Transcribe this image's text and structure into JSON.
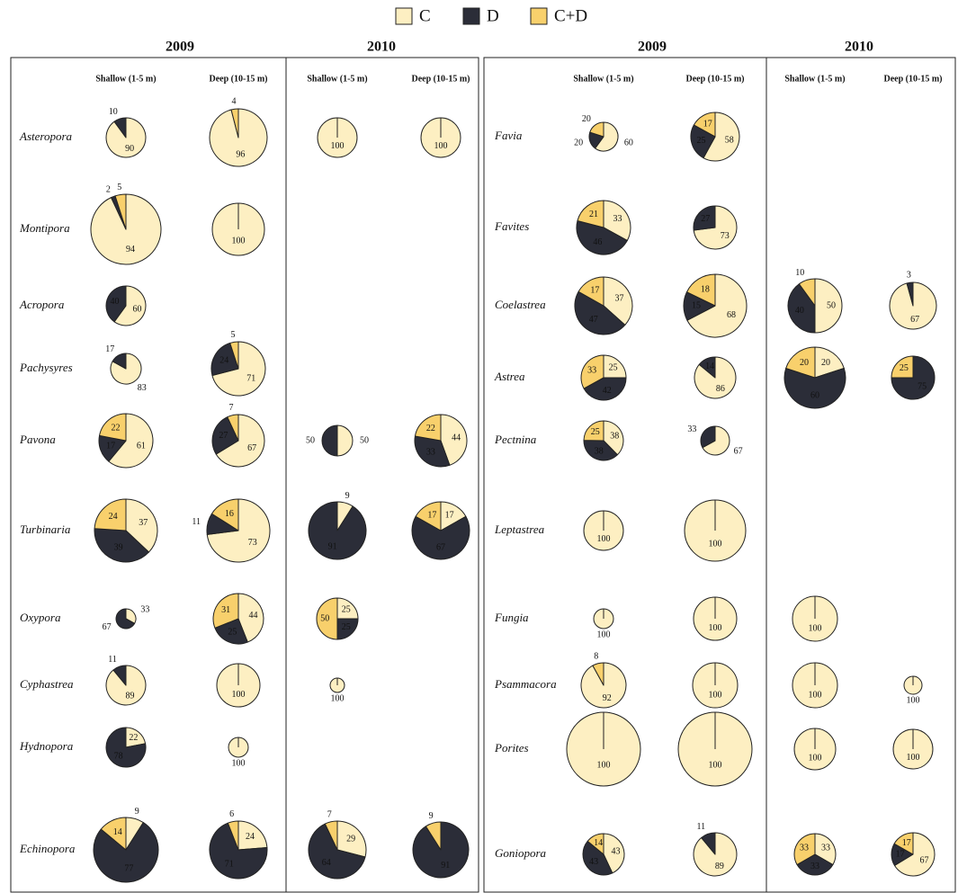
{
  "chart_data": {
    "type": "pie",
    "series": [
      {
        "name": "C",
        "color": "#fdefc2"
      },
      {
        "name": "D",
        "color": "#2b2d38"
      },
      {
        "name": "C+D",
        "color": "#f8d06c"
      }
    ],
    "panels": [
      {
        "years": [
          {
            "label": "2009",
            "columns": [
              "Shallow (1-5 m)",
              "Deep (10-15 m)"
            ]
          },
          {
            "label": "2010",
            "columns": [
              "Shallow (1-5 m)",
              "Deep (10-15 m)"
            ]
          }
        ],
        "rows": [
          {
            "genus": "Asteropora",
            "pies": [
              {
                "values": [
                  90,
                  10,
                  null
                ],
                "size": 22
              },
              {
                "values": [
                  96,
                  null,
                  4
                ],
                "size": 32
              },
              {
                "values": [
                  100,
                  null,
                  null
                ],
                "size": 22
              },
              {
                "values": [
                  100,
                  null,
                  null
                ],
                "size": 22
              }
            ]
          },
          {
            "genus": "Montipora",
            "pies": [
              {
                "values": [
                  94,
                  2,
                  5
                ],
                "size": 39
              },
              {
                "values": [
                  100,
                  null,
                  null
                ],
                "size": 29
              },
              null,
              null
            ]
          },
          {
            "genus": "Acropora",
            "pies": [
              {
                "values": [
                  60,
                  40,
                  null
                ],
                "size": 22
              },
              null,
              null,
              null
            ]
          },
          {
            "genus": "Pachysyres",
            "pies": [
              {
                "values": [
                  83,
                  17,
                  null
                ],
                "size": 17
              },
              {
                "values": [
                  71,
                  24,
                  5
                ],
                "size": 30
              },
              null,
              null
            ]
          },
          {
            "genus": "Pavona",
            "pies": [
              {
                "values": [
                  61,
                  17,
                  22
                ],
                "size": 30
              },
              {
                "values": [
                  67,
                  27,
                  7
                ],
                "size": 29
              },
              {
                "values": [
                  50,
                  50,
                  null
                ],
                "size": 17
              },
              {
                "values": [
                  44,
                  33,
                  22
                ],
                "size": 29
              }
            ]
          },
          {
            "genus": "Turbinaria",
            "pies": [
              {
                "values": [
                  37,
                  39,
                  24
                ],
                "size": 35
              },
              {
                "values": [
                  73,
                  11,
                  16
                ],
                "size": 35
              },
              {
                "values": [
                  9,
                  91,
                  null
                ],
                "size": 32
              },
              {
                "values": [
                  17,
                  67,
                  17
                ],
                "size": 32
              }
            ]
          },
          {
            "genus": "Oxypora",
            "pies": [
              {
                "values": [
                  33,
                  67,
                  null
                ],
                "size": 11
              },
              {
                "values": [
                  44,
                  25,
                  31
                ],
                "size": 28
              },
              {
                "values": [
                  25,
                  25,
                  50
                ],
                "size": 23
              },
              null
            ]
          },
          {
            "genus": "Cyphastrea",
            "pies": [
              {
                "values": [
                  89,
                  11,
                  null
                ],
                "size": 22
              },
              {
                "values": [
                  100,
                  null,
                  null
                ],
                "size": 24
              },
              {
                "values": [
                  100,
                  null,
                  null
                ],
                "size": 8
              },
              null
            ]
          },
          {
            "genus": "Hydnopora",
            "pies": [
              {
                "values": [
                  22,
                  78,
                  null
                ],
                "size": 22
              },
              {
                "values": [
                  100,
                  null,
                  null
                ],
                "size": 11
              },
              null,
              null
            ]
          },
          {
            "genus": "Echinopora",
            "pies": [
              {
                "values": [
                  9,
                  77,
                  14
                ],
                "size": 36
              },
              {
                "values": [
                  24,
                  71,
                  6
                ],
                "size": 32
              },
              {
                "values": [
                  29,
                  64,
                  7
                ],
                "size": 32
              },
              {
                "values": [
                  null,
                  91,
                  9
                ],
                "size": 31
              }
            ]
          }
        ]
      },
      {
        "years": [
          {
            "label": "2009",
            "columns": [
              "Shallow (1-5 m)",
              "Deep (10-15 m)"
            ]
          },
          {
            "label": "2010",
            "columns": [
              "Shallow (1-5 m)",
              "Deep (10-15 m)"
            ]
          }
        ],
        "rows": [
          {
            "genus": "Favia",
            "pies": [
              {
                "values": [
                  60,
                  20,
                  20
                ],
                "size": 16
              },
              {
                "values": [
                  58,
                  25,
                  17
                ],
                "size": 27
              },
              null,
              null
            ]
          },
          {
            "genus": "Favites",
            "pies": [
              {
                "values": [
                  33,
                  46,
                  21
                ],
                "size": 30
              },
              {
                "values": [
                  73,
                  27,
                  null
                ],
                "size": 24
              },
              null,
              null
            ]
          },
          {
            "genus": "Coelastrea",
            "pies": [
              {
                "values": [
                  37,
                  47,
                  17
                ],
                "size": 32
              },
              {
                "values": [
                  68,
                  15,
                  18
                ],
                "size": 35
              },
              {
                "values": [
                  50,
                  40,
                  10
                ],
                "size": 30
              },
              {
                "values": [
                  67,
                  3,
                  null
                ],
                "size": 26
              }
            ]
          },
          {
            "genus": "Astrea",
            "pies": [
              {
                "values": [
                  25,
                  42,
                  33
                ],
                "size": 25
              },
              {
                "values": [
                  86,
                  14,
                  null
                ],
                "size": 23
              },
              {
                "values": [
                  20,
                  60,
                  20
                ],
                "size": 34
              },
              {
                "values": [
                  null,
                  75,
                  25
                ],
                "size": 24
              }
            ]
          },
          {
            "genus": "Pectnina",
            "pies": [
              {
                "values": [
                  38,
                  38,
                  25
                ],
                "size": 22
              },
              {
                "values": [
                  67,
                  33,
                  null
                ],
                "size": 16
              },
              null,
              null
            ]
          },
          {
            "genus": "Leptastrea",
            "pies": [
              {
                "values": [
                  100,
                  null,
                  null
                ],
                "size": 22
              },
              {
                "values": [
                  100,
                  null,
                  null
                ],
                "size": 34
              },
              null,
              null
            ]
          },
          {
            "genus": "Fungia",
            "pies": [
              {
                "values": [
                  100,
                  null,
                  null
                ],
                "size": 11
              },
              {
                "values": [
                  100,
                  null,
                  null
                ],
                "size": 24
              },
              {
                "values": [
                  100,
                  null,
                  null
                ],
                "size": 25
              },
              null
            ]
          },
          {
            "genus": "Psammacora",
            "pies": [
              {
                "values": [
                  92,
                  null,
                  8
                ],
                "size": 25
              },
              {
                "values": [
                  100,
                  null,
                  null
                ],
                "size": 25
              },
              {
                "values": [
                  100,
                  null,
                  null
                ],
                "size": 25
              },
              {
                "values": [
                  100,
                  null,
                  null
                ],
                "size": 10
              }
            ]
          },
          {
            "genus": "Porites",
            "pies": [
              {
                "values": [
                  100,
                  null,
                  null
                ],
                "size": 41
              },
              {
                "values": [
                  100,
                  null,
                  null
                ],
                "size": 41
              },
              {
                "values": [
                  100,
                  null,
                  null
                ],
                "size": 23
              },
              {
                "values": [
                  100,
                  null,
                  null
                ],
                "size": 22
              }
            ]
          },
          {
            "genus": "Goniopora",
            "pies": [
              {
                "values": [
                  43,
                  43,
                  14
                ],
                "size": 23
              },
              {
                "values": [
                  89,
                  11,
                  null
                ],
                "size": 24
              },
              {
                "values": [
                  33,
                  33,
                  33
                ],
                "size": 23
              },
              {
                "values": [
                  67,
                  17,
                  17
                ],
                "size": 24
              }
            ]
          }
        ]
      }
    ]
  }
}
